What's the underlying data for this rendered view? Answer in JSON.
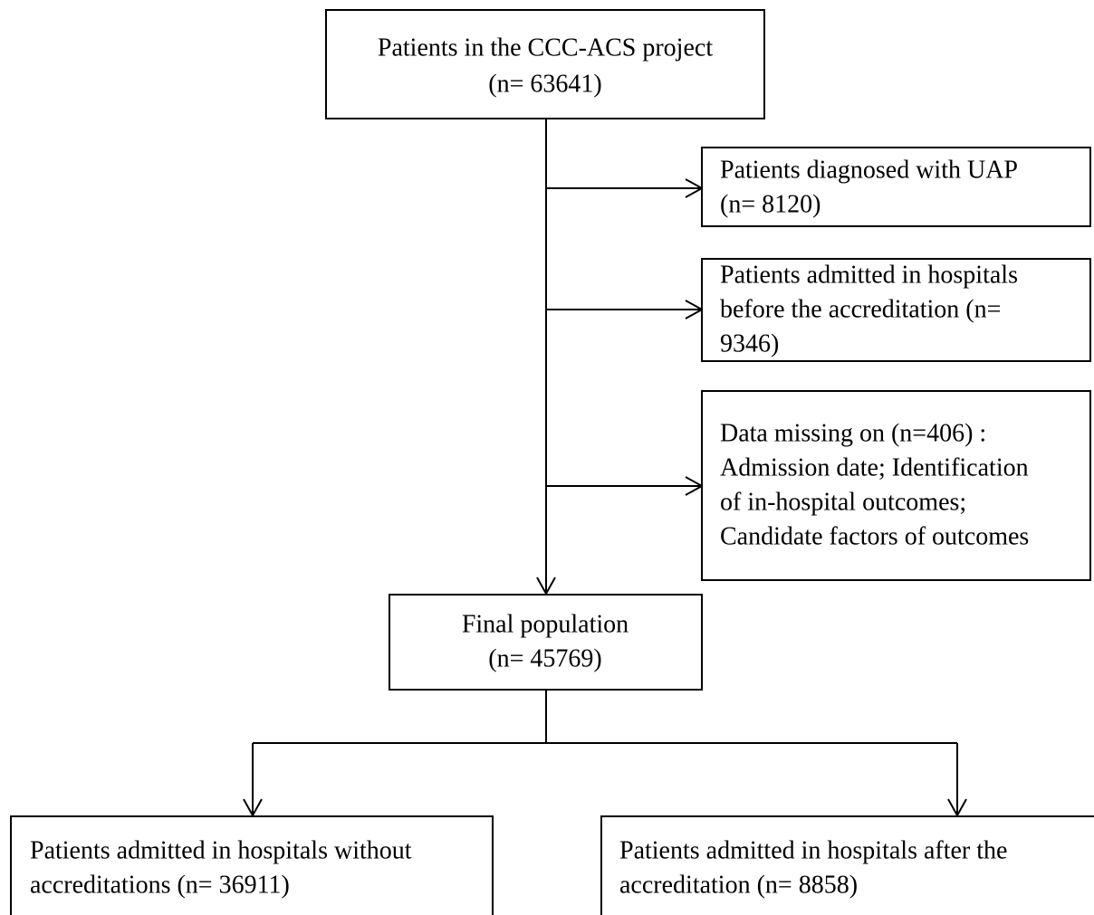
{
  "nodes": [
    {
      "lines": [
        "Patients in the CCC-ACS project",
        "(n= 63641)"
      ]
    },
    {
      "lines": [
        "Patients diagnosed with UAP",
        "(n= 8120)"
      ]
    },
    {
      "lines": [
        "Patients admitted in hospitals",
        "before the accreditation (n=",
        "9346)"
      ]
    },
    {
      "lines": [
        "Data missing on (n=406) :",
        "Admission date; Identification",
        "of in-hospital outcomes;",
        "Candidate factors of outcomes"
      ]
    },
    {
      "lines": [
        "Final population",
        "(n= 45769)"
      ]
    },
    {
      "lines": [
        "Patients admitted in hospitals without",
        "accreditations (n= 36911)"
      ]
    },
    {
      "lines": [
        "Patients admitted in hospitals after the",
        "accreditation (n= 8858)"
      ]
    }
  ]
}
